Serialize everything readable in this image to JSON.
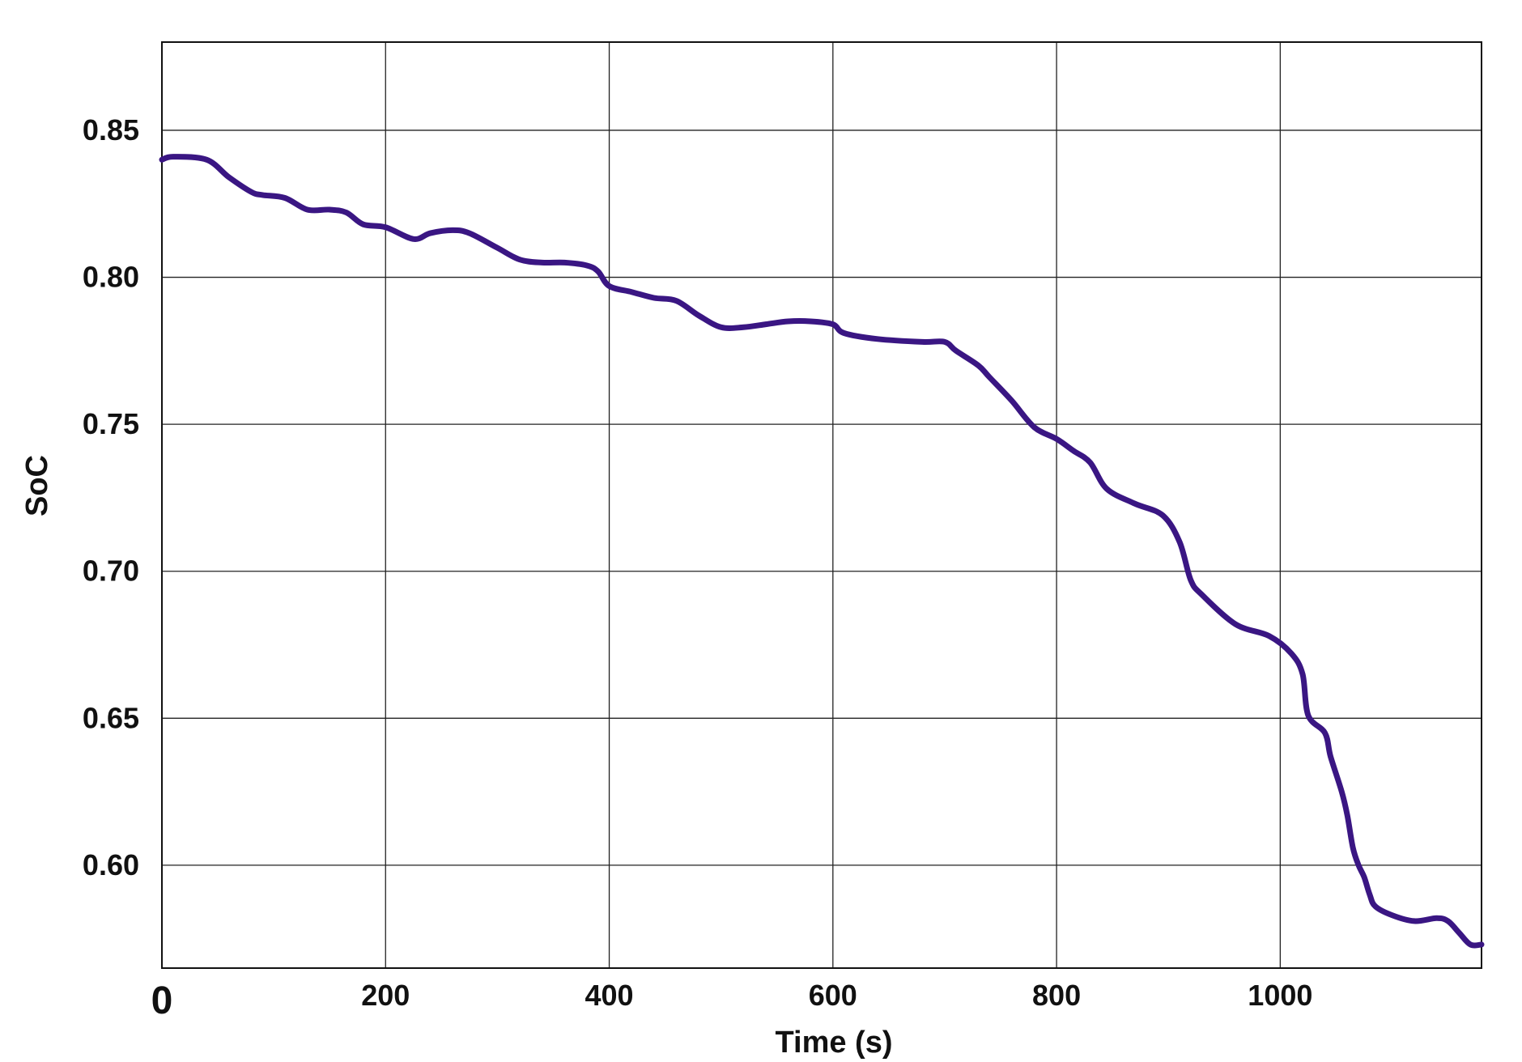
{
  "chart_data": {
    "type": "line",
    "xlabel": "Time (s)",
    "ylabel": "SoC",
    "xlim": [
      0,
      1180
    ],
    "ylim": [
      0.565,
      0.88
    ],
    "x_ticks": [
      0,
      200,
      400,
      600,
      800,
      1000
    ],
    "x_tick_labels": [
      "0",
      "200",
      "400",
      "600",
      "800",
      "1000"
    ],
    "y_ticks": [
      0.6,
      0.65,
      0.7,
      0.75,
      0.8,
      0.85
    ],
    "y_tick_labels": [
      "0.60",
      "0.65",
      "0.70",
      "0.75",
      "0.80",
      "0.85"
    ],
    "grid": true,
    "legend": "none",
    "line_color": "#3a1683",
    "series": [
      {
        "x": [
          0,
          10,
          40,
          60,
          80,
          90,
          110,
          130,
          150,
          165,
          180,
          200,
          225,
          240,
          260,
          275,
          300,
          320,
          340,
          360,
          380,
          390,
          400,
          420,
          440,
          460,
          480,
          500,
          520,
          540,
          560,
          580,
          600,
          610,
          640,
          680,
          700,
          710,
          730,
          740,
          760,
          780,
          800,
          815,
          830,
          845,
          870,
          895,
          910,
          920,
          930,
          960,
          990,
          1010,
          1020,
          1025,
          1040,
          1045,
          1055,
          1060,
          1065,
          1070,
          1075,
          1080,
          1085,
          1100,
          1120,
          1140,
          1150,
          1160,
          1170,
          1180
        ],
        "y": [
          0.84,
          0.841,
          0.84,
          0.834,
          0.829,
          0.828,
          0.827,
          0.823,
          0.823,
          0.822,
          0.818,
          0.817,
          0.813,
          0.815,
          0.816,
          0.815,
          0.81,
          0.806,
          0.805,
          0.805,
          0.804,
          0.802,
          0.797,
          0.795,
          0.793,
          0.792,
          0.787,
          0.783,
          0.783,
          0.784,
          0.785,
          0.785,
          0.784,
          0.781,
          0.779,
          0.778,
          0.778,
          0.775,
          0.77,
          0.766,
          0.758,
          0.749,
          0.745,
          0.741,
          0.737,
          0.728,
          0.723,
          0.719,
          0.71,
          0.697,
          0.692,
          0.682,
          0.678,
          0.672,
          0.665,
          0.651,
          0.645,
          0.637,
          0.625,
          0.617,
          0.606,
          0.6,
          0.596,
          0.59,
          0.586,
          0.583,
          0.581,
          0.582,
          0.581,
          0.577,
          0.573,
          0.573
        ]
      }
    ]
  }
}
